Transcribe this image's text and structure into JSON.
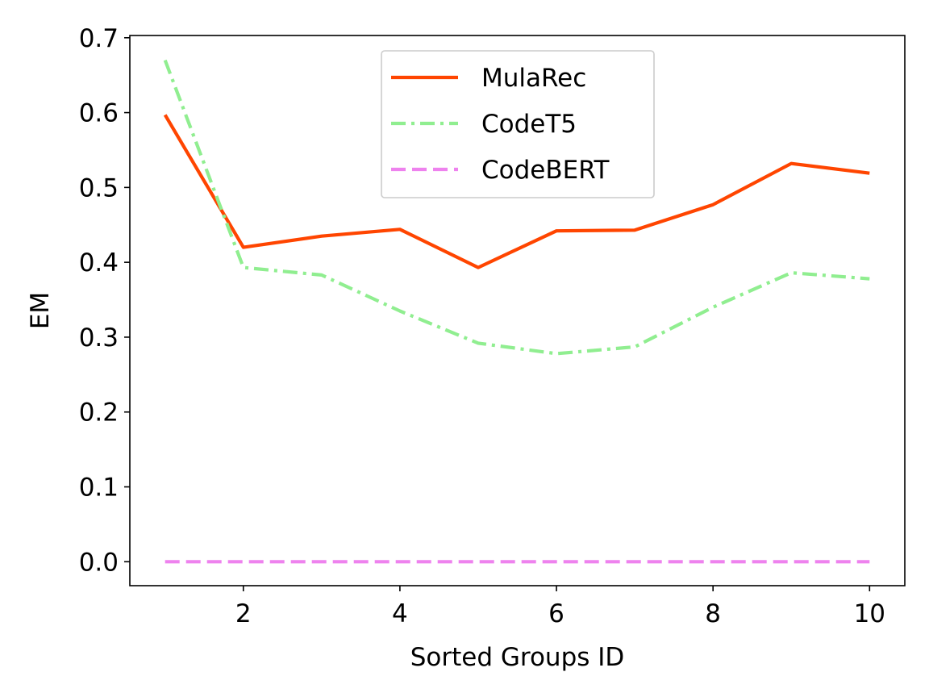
{
  "chart_data": {
    "type": "line",
    "title": "",
    "xlabel": "Sorted Groups ID",
    "ylabel": "EM",
    "xlim": [
      0.55,
      10.45
    ],
    "ylim": [
      -0.032,
      0.703
    ],
    "xticks": [
      2,
      4,
      6,
      8,
      10
    ],
    "xtick_labels": [
      "2",
      "4",
      "6",
      "8",
      "10"
    ],
    "yticks": [
      0.0,
      0.1,
      0.2,
      0.3,
      0.4,
      0.5,
      0.6,
      0.7
    ],
    "ytick_labels": [
      "0.0",
      "0.1",
      "0.2",
      "0.3",
      "0.4",
      "0.5",
      "0.6",
      "0.7"
    ],
    "grid": false,
    "legend_position": "upper center",
    "x": [
      1,
      2,
      3,
      4,
      5,
      6,
      7,
      8,
      9,
      10
    ],
    "series": [
      {
        "name": "MulaRec",
        "color": "#ff4500",
        "style": "solid",
        "values": [
          0.597,
          0.42,
          0.435,
          0.444,
          0.393,
          0.442,
          0.443,
          0.477,
          0.532,
          0.519
        ]
      },
      {
        "name": "CodeT5",
        "color": "#90ee90",
        "style": "dashdot",
        "values": [
          0.67,
          0.393,
          0.383,
          0.335,
          0.292,
          0.278,
          0.287,
          0.34,
          0.386,
          0.378
        ]
      },
      {
        "name": "CodeBERT",
        "color": "#ee82ee",
        "style": "dashed",
        "values": [
          0.0,
          0.0,
          0.0,
          0.0,
          0.0,
          0.0,
          0.0,
          0.0,
          0.0,
          0.0
        ]
      }
    ]
  }
}
